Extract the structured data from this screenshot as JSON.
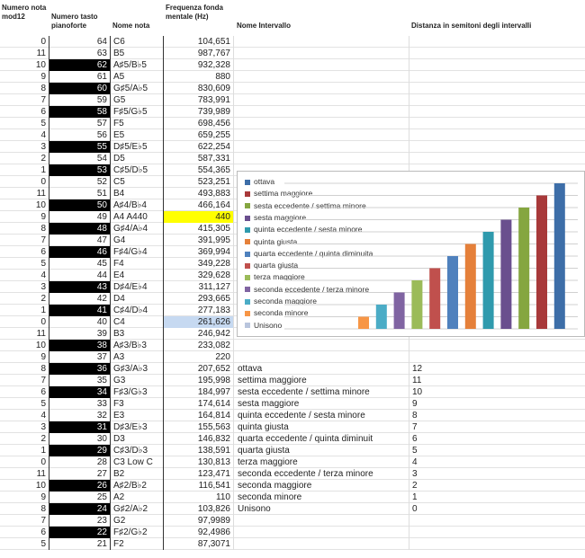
{
  "headers": {
    "mod": "Numero nota mod12",
    "key": "Numero tasto pianoforte",
    "note": "Nome nota",
    "freq": "Frequenza fonda mentale (Hz)",
    "interval": "Nome Intervallo",
    "distance": "Distanza in semitoni degli intervalli"
  },
  "rows": [
    {
      "mod": "0",
      "key": "64",
      "note": "C6",
      "freq": "104,651",
      "black": false
    },
    {
      "mod": "11",
      "key": "63",
      "note": "B5",
      "freq": "987,767",
      "black": false
    },
    {
      "mod": "10",
      "key": "62",
      "note": "A♯5/B♭5",
      "freq": "932,328",
      "black": true
    },
    {
      "mod": "9",
      "key": "61",
      "note": "A5",
      "freq": "880",
      "black": false
    },
    {
      "mod": "8",
      "key": "60",
      "note": "G♯5/A♭5",
      "freq": "830,609",
      "black": true
    },
    {
      "mod": "7",
      "key": "59",
      "note": "G5",
      "freq": "783,991",
      "black": false
    },
    {
      "mod": "6",
      "key": "58",
      "note": "F♯5/G♭5",
      "freq": "739,989",
      "black": true
    },
    {
      "mod": "5",
      "key": "57",
      "note": "F5",
      "freq": "698,456",
      "black": false
    },
    {
      "mod": "4",
      "key": "56",
      "note": "E5",
      "freq": "659,255",
      "black": false
    },
    {
      "mod": "3",
      "key": "55",
      "note": "D♯5/E♭5",
      "freq": "622,254",
      "black": true
    },
    {
      "mod": "2",
      "key": "54",
      "note": "D5",
      "freq": "587,331",
      "black": false
    },
    {
      "mod": "1",
      "key": "53",
      "note": "C♯5/D♭5",
      "freq": "554,365",
      "black": true
    },
    {
      "mod": "0",
      "key": "52",
      "note": "C5",
      "freq": "523,251",
      "black": false
    },
    {
      "mod": "11",
      "key": "51",
      "note": "B4",
      "freq": "493,883",
      "black": false
    },
    {
      "mod": "10",
      "key": "50",
      "note": "A♯4/B♭4",
      "freq": "466,164",
      "black": true
    },
    {
      "mod": "9",
      "key": "49",
      "note": "A4 A440",
      "freq": "440",
      "black": false,
      "highlight": "yellow"
    },
    {
      "mod": "8",
      "key": "48",
      "note": "G♯4/A♭4",
      "freq": "415,305",
      "black": true
    },
    {
      "mod": "7",
      "key": "47",
      "note": "G4",
      "freq": "391,995",
      "black": false
    },
    {
      "mod": "6",
      "key": "46",
      "note": "F♯4/G♭4",
      "freq": "369,994",
      "black": true
    },
    {
      "mod": "5",
      "key": "45",
      "note": "F4",
      "freq": "349,228",
      "black": false
    },
    {
      "mod": "4",
      "key": "44",
      "note": "E4",
      "freq": "329,628",
      "black": false
    },
    {
      "mod": "3",
      "key": "43",
      "note": "D♯4/E♭4",
      "freq": "311,127",
      "black": true
    },
    {
      "mod": "2",
      "key": "42",
      "note": "D4",
      "freq": "293,665",
      "black": false
    },
    {
      "mod": "1",
      "key": "41",
      "note": "C♯4/D♭4",
      "freq": "277,183",
      "black": true
    },
    {
      "mod": "0",
      "key": "40",
      "note": "C4",
      "freq": "261,626",
      "black": false,
      "highlight": "blue"
    },
    {
      "mod": "11",
      "key": "39",
      "note": "B3",
      "freq": "246,942",
      "black": false
    },
    {
      "mod": "10",
      "key": "38",
      "note": "A♯3/B♭3",
      "freq": "233,082",
      "black": true
    },
    {
      "mod": "9",
      "key": "37",
      "note": "A3",
      "freq": "220",
      "black": false
    },
    {
      "mod": "8",
      "key": "36",
      "note": "G♯3/A♭3",
      "freq": "207,652",
      "black": true,
      "interval": "ottava",
      "distance": "12"
    },
    {
      "mod": "7",
      "key": "35",
      "note": "G3",
      "freq": "195,998",
      "black": false,
      "interval": "settima maggiore",
      "distance": "11"
    },
    {
      "mod": "6",
      "key": "34",
      "note": "F♯3/G♭3",
      "freq": "184,997",
      "black": true,
      "interval": "sesta eccedente / settima minore",
      "distance": "10"
    },
    {
      "mod": "5",
      "key": "33",
      "note": "F3",
      "freq": "174,614",
      "black": false,
      "interval": "sesta maggiore",
      "distance": "9"
    },
    {
      "mod": "4",
      "key": "32",
      "note": "E3",
      "freq": "164,814",
      "black": false,
      "interval": "quinta eccedente / sesta minore",
      "distance": "8"
    },
    {
      "mod": "3",
      "key": "31",
      "note": "D♯3/E♭3",
      "freq": "155,563",
      "black": true,
      "interval": "quinta giusta",
      "distance": "7"
    },
    {
      "mod": "2",
      "key": "30",
      "note": "D3",
      "freq": "146,832",
      "black": false,
      "interval": "quarta eccedente / quinta diminuit",
      "distance": "6"
    },
    {
      "mod": "1",
      "key": "29",
      "note": "C♯3/D♭3",
      "freq": "138,591",
      "black": true,
      "interval": "quarta giusta",
      "distance": "5"
    },
    {
      "mod": "0",
      "key": "28",
      "note": "C3 Low C",
      "freq": "130,813",
      "black": false,
      "interval": "terza maggiore",
      "distance": "4"
    },
    {
      "mod": "11",
      "key": "27",
      "note": "B2",
      "freq": "123,471",
      "black": false,
      "interval": "seconda eccedente / terza minore",
      "distance": "3"
    },
    {
      "mod": "10",
      "key": "26",
      "note": "A♯2/B♭2",
      "freq": "116,541",
      "black": true,
      "interval": "seconda maggiore",
      "distance": "2"
    },
    {
      "mod": "9",
      "key": "25",
      "note": "A2",
      "freq": "110",
      "black": false,
      "interval": "seconda minore",
      "distance": "1"
    },
    {
      "mod": "8",
      "key": "24",
      "note": "G♯2/A♭2",
      "freq": "103,826",
      "black": true,
      "interval": "Unisono",
      "distance": "0"
    },
    {
      "mod": "7",
      "key": "23",
      "note": "G2",
      "freq": "97,9989",
      "black": false
    },
    {
      "mod": "6",
      "key": "22",
      "note": "F♯2/G♭2",
      "freq": "92,4986",
      "black": true
    },
    {
      "mod": "5",
      "key": "21",
      "note": "F2",
      "freq": "87,3071",
      "black": false
    }
  ],
  "highlight_colors": {
    "yellow": "#ffff00",
    "blue": "#c6d9f1"
  },
  "chart_data": {
    "type": "bar",
    "legend_position": "left",
    "grid": true,
    "ylim": [
      0,
      12
    ],
    "series": [
      {
        "name": "Unisono",
        "value": 0,
        "color": "#b9c5dd"
      },
      {
        "name": "seconda minore",
        "value": 1,
        "color": "#f79646"
      },
      {
        "name": "seconda maggiore",
        "value": 2,
        "color": "#4bacc6"
      },
      {
        "name": "seconda eccedente / terza minore",
        "value": 3,
        "color": "#8064a2"
      },
      {
        "name": "terza maggiore",
        "value": 4,
        "color": "#9bbb59"
      },
      {
        "name": "quarta giusta",
        "value": 5,
        "color": "#c0504d"
      },
      {
        "name": "quarta eccedente / quinta diminuita",
        "value": 6,
        "color": "#4f81bd"
      },
      {
        "name": "quinta giusta",
        "value": 7,
        "color": "#e5803a"
      },
      {
        "name": "quinta eccedente / sesta minore",
        "value": 8,
        "color": "#2f9aad"
      },
      {
        "name": "sesta maggiore",
        "value": 9,
        "color": "#6a4f8e"
      },
      {
        "name": "sesta eccedente / settima minore",
        "value": 10,
        "color": "#85a640"
      },
      {
        "name": "settima maggiore",
        "value": 11,
        "color": "#a8393a"
      },
      {
        "name": "ottava",
        "value": 12,
        "color": "#3d6ea8"
      }
    ]
  }
}
